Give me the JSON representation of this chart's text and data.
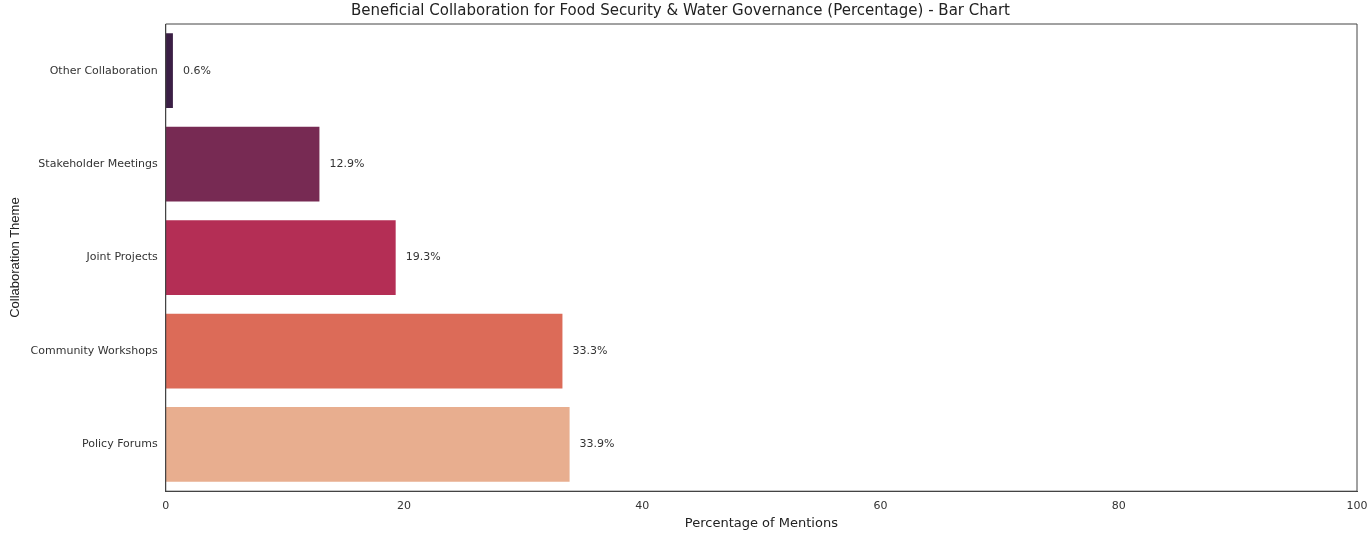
{
  "chart_data": {
    "type": "bar",
    "orientation": "horizontal",
    "title": "Beneficial Collaboration for Food Security & Water Governance (Percentage) - Bar Chart",
    "xlabel": "Percentage of Mentions",
    "ylabel": "Collaboration Theme",
    "categories": [
      "Other Collaboration",
      "Stakeholder Meetings",
      "Joint Projects",
      "Community Workshops",
      "Policy Forums"
    ],
    "values": [
      0.6,
      12.9,
      19.3,
      33.3,
      33.9
    ],
    "colors": [
      "#3b1f45",
      "#772a53",
      "#b42e55",
      "#dc6b58",
      "#e8ae8f"
    ],
    "value_labels": [
      "0.6%",
      "12.9%",
      "19.3%",
      "33.3%",
      "33.9%"
    ],
    "xlim": [
      0,
      100
    ],
    "xticks": [
      0,
      20,
      40,
      60,
      80,
      100
    ],
    "grid": false,
    "legend": false
  }
}
